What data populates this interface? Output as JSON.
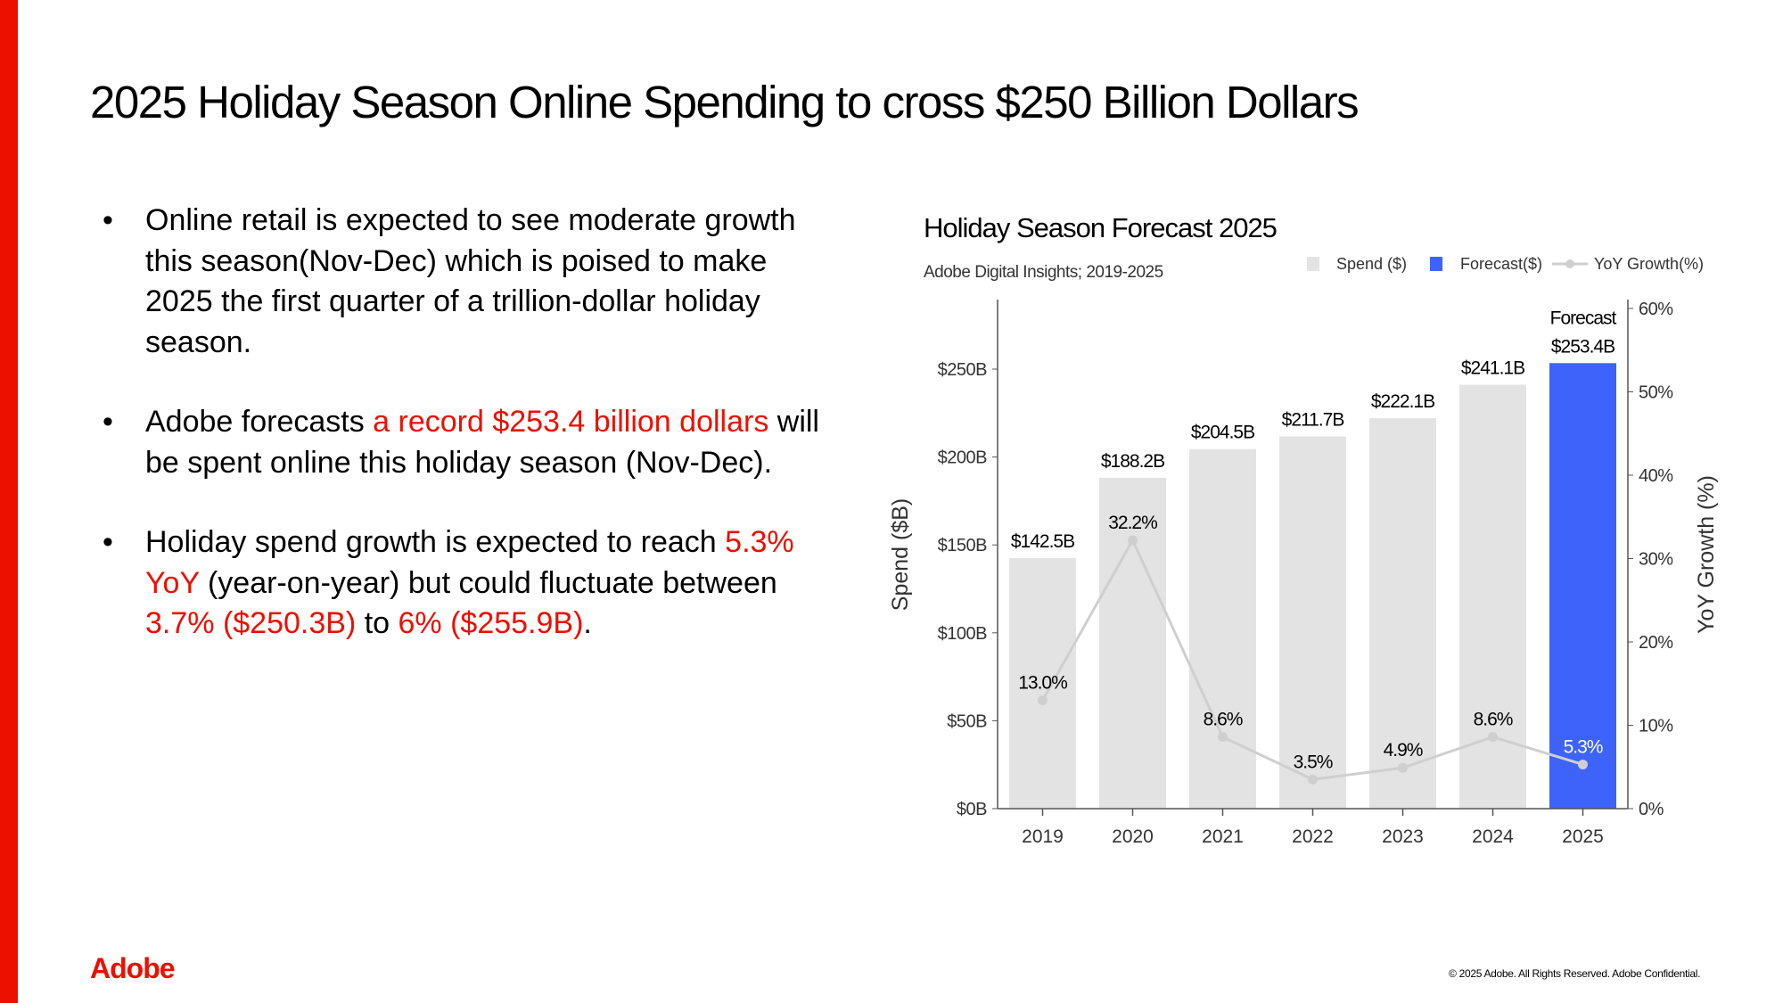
{
  "title": "2025 Holiday Season Online Spending to cross $250 Billion Dollars",
  "bullets": [
    {
      "parts": [
        {
          "text": "Online retail is expected to see moderate growth this season(Nov-Dec) which is poised to make 2025 the first quarter of a trillion-dollar holiday season.",
          "highlight": false
        }
      ]
    },
    {
      "parts": [
        {
          "text": "Adobe forecasts ",
          "highlight": false
        },
        {
          "text": "a record $253.4 billion dollars",
          "highlight": true
        },
        {
          "text": " will be spent online this holiday season (Nov-Dec).",
          "highlight": false
        }
      ]
    },
    {
      "parts": [
        {
          "text": "Holiday spend growth is expected to reach ",
          "highlight": false
        },
        {
          "text": "5.3% YoY",
          "highlight": true
        },
        {
          "text": " (year-on-year) but could fluctuate between ",
          "highlight": false
        },
        {
          "text": "3.7% ($250.3B)",
          "highlight": true
        },
        {
          "text": " to ",
          "highlight": false
        },
        {
          "text": "6% ($255.9B)",
          "highlight": true
        },
        {
          "text": ".",
          "highlight": false
        }
      ]
    }
  ],
  "bullet_glyph": "•",
  "colors": {
    "accent": "#eb1000",
    "spend": "#e3e3e3",
    "forecast": "#3d63fb",
    "growth": "#cfcfcf"
  },
  "chart_data": {
    "type": "bar",
    "title": "Holiday Season Forecast 2025",
    "subtitle": "Adobe Digital Insights; 2019-2025",
    "categories": [
      "2019",
      "2020",
      "2021",
      "2022",
      "2023",
      "2024",
      "2025"
    ],
    "series": [
      {
        "name": "Spend ($)",
        "type": "bar",
        "values": [
          142.5,
          188.2,
          204.5,
          211.7,
          222.1,
          241.1,
          null
        ],
        "labels": [
          "$142.5B",
          "$188.2B",
          "$204.5B",
          "$211.7B",
          "$222.1B",
          "$241.1B",
          null
        ]
      },
      {
        "name": "Forecast($)",
        "type": "bar",
        "values": [
          null,
          null,
          null,
          null,
          null,
          null,
          253.4
        ],
        "labels": [
          null,
          null,
          null,
          null,
          null,
          null,
          "$253.4B"
        ],
        "prefix_label": "Forecast"
      },
      {
        "name": "YoY Growth(%)",
        "type": "line",
        "axis": "right",
        "values": [
          13.0,
          32.2,
          8.6,
          3.5,
          4.9,
          8.6,
          5.3
        ],
        "labels": [
          "13.0%",
          "32.2%",
          "8.6%",
          "3.5%",
          "4.9%",
          "8.6%",
          "5.3%"
        ]
      }
    ],
    "ylabel": "Spend ($B)",
    "ylim": [
      0,
      290
    ],
    "yticks": [
      {
        "v": 0,
        "l": "$0B"
      },
      {
        "v": 50,
        "l": "$50B"
      },
      {
        "v": 100,
        "l": "$100B"
      },
      {
        "v": 150,
        "l": "$150B"
      },
      {
        "v": 200,
        "l": "$200B"
      },
      {
        "v": 250,
        "l": "$250B"
      }
    ],
    "y2label": "YoY Growth (%)",
    "y2lim": [
      0,
      60
    ],
    "y2ticks": [
      {
        "v": 0,
        "l": "0%"
      },
      {
        "v": 10,
        "l": "10%"
      },
      {
        "v": 20,
        "l": "20%"
      },
      {
        "v": 30,
        "l": "30%"
      },
      {
        "v": 40,
        "l": "40%"
      },
      {
        "v": 50,
        "l": "50%"
      },
      {
        "v": 60,
        "l": "60%"
      }
    ],
    "legend": "top-right",
    "grid": false
  },
  "footer": {
    "logo": "Adobe",
    "copyright": "© 2025 Adobe. All Rights Reserved. Adobe Confidential."
  }
}
